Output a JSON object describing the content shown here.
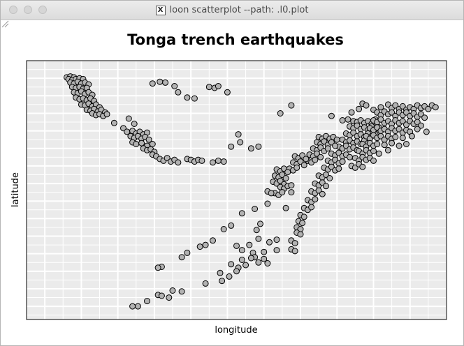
{
  "window": {
    "title": "loon scatterplot --path: .l0.plot",
    "title_icon": "X"
  },
  "chart_data": {
    "type": "scatter",
    "title": "Tonga trench earthquakes",
    "xlabel": "longitude",
    "ylabel": "latitude",
    "xlim": [
      165.0,
      188.0
    ],
    "ylim": [
      -39.5,
      -10.0
    ],
    "grid": true,
    "axis_ticks_shown": false,
    "background": "#ebebeb",
    "point_fill": "#b3b3b3",
    "point_stroke": "#000000",
    "points": [
      [
        167.2,
        -11.9
      ],
      [
        167.4,
        -11.8
      ],
      [
        167.6,
        -11.9
      ],
      [
        167.3,
        -12.1
      ],
      [
        167.5,
        -12.2
      ],
      [
        167.7,
        -12.1
      ],
      [
        167.9,
        -12.0
      ],
      [
        168.1,
        -12.1
      ],
      [
        167.4,
        -12.5
      ],
      [
        167.6,
        -12.6
      ],
      [
        167.8,
        -12.4
      ],
      [
        168.0,
        -12.6
      ],
      [
        168.2,
        -12.5
      ],
      [
        168.4,
        -12.7
      ],
      [
        167.5,
        -13.0
      ],
      [
        167.7,
        -13.1
      ],
      [
        167.9,
        -13.0
      ],
      [
        168.1,
        -13.2
      ],
      [
        168.3,
        -13.1
      ],
      [
        167.6,
        -13.6
      ],
      [
        167.8,
        -13.7
      ],
      [
        168.0,
        -13.5
      ],
      [
        168.2,
        -13.8
      ],
      [
        168.4,
        -13.6
      ],
      [
        168.6,
        -13.9
      ],
      [
        167.7,
        -14.2
      ],
      [
        167.9,
        -14.4
      ],
      [
        168.1,
        -14.3
      ],
      [
        168.3,
        -14.5
      ],
      [
        168.5,
        -14.3
      ],
      [
        168.7,
        -14.6
      ],
      [
        168.0,
        -15.0
      ],
      [
        168.2,
        -15.1
      ],
      [
        168.4,
        -14.9
      ],
      [
        168.6,
        -15.2
      ],
      [
        168.8,
        -15.0
      ],
      [
        169.0,
        -15.3
      ],
      [
        168.3,
        -15.6
      ],
      [
        168.5,
        -15.7
      ],
      [
        168.7,
        -15.5
      ],
      [
        168.9,
        -15.8
      ],
      [
        169.1,
        -15.6
      ],
      [
        169.3,
        -15.9
      ],
      [
        168.6,
        -16.0
      ],
      [
        168.8,
        -16.2
      ],
      [
        169.0,
        -16.1
      ],
      [
        169.2,
        -16.3
      ],
      [
        169.4,
        -16.1
      ],
      [
        169.8,
        -17.1
      ],
      [
        170.3,
        -17.7
      ],
      [
        170.6,
        -16.6
      ],
      [
        170.9,
        -17.2
      ],
      [
        170.5,
        -18.1
      ],
      [
        170.8,
        -18.0
      ],
      [
        171.0,
        -18.3
      ],
      [
        171.2,
        -18.1
      ],
      [
        171.4,
        -18.4
      ],
      [
        171.6,
        -18.2
      ],
      [
        170.7,
        -18.6
      ],
      [
        170.9,
        -18.8
      ],
      [
        171.1,
        -18.6
      ],
      [
        171.3,
        -18.9
      ],
      [
        171.5,
        -18.7
      ],
      [
        171.7,
        -19.0
      ],
      [
        170.8,
        -19.3
      ],
      [
        171.0,
        -19.5
      ],
      [
        171.3,
        -19.4
      ],
      [
        171.6,
        -19.7
      ],
      [
        171.9,
        -19.5
      ],
      [
        171.4,
        -20.0
      ],
      [
        171.6,
        -20.2
      ],
      [
        171.8,
        -20.1
      ],
      [
        172.0,
        -20.4
      ],
      [
        171.9,
        -20.7
      ],
      [
        172.1,
        -20.9
      ],
      [
        172.3,
        -21.2
      ],
      [
        172.5,
        -21.4
      ],
      [
        172.7,
        -21.1
      ],
      [
        172.9,
        -21.5
      ],
      [
        173.1,
        -21.3
      ],
      [
        173.3,
        -21.6
      ],
      [
        173.8,
        -21.2
      ],
      [
        174.0,
        -21.3
      ],
      [
        174.2,
        -21.5
      ],
      [
        174.4,
        -21.3
      ],
      [
        174.6,
        -21.4
      ],
      [
        175.2,
        -21.6
      ],
      [
        175.5,
        -21.4
      ],
      [
        175.8,
        -21.5
      ],
      [
        171.9,
        -12.6
      ],
      [
        172.3,
        -12.4
      ],
      [
        172.6,
        -12.5
      ],
      [
        173.1,
        -12.9
      ],
      [
        173.3,
        -13.6
      ],
      [
        173.8,
        -14.2
      ],
      [
        174.2,
        -14.3
      ],
      [
        175.0,
        -13.0
      ],
      [
        175.3,
        -13.1
      ],
      [
        175.5,
        -12.9
      ],
      [
        176.0,
        -13.6
      ],
      [
        176.2,
        -19.8
      ],
      [
        176.6,
        -18.4
      ],
      [
        176.7,
        -19.3
      ],
      [
        177.3,
        -20.0
      ],
      [
        177.7,
        -19.8
      ],
      [
        178.9,
        -16.0
      ],
      [
        179.5,
        -15.1
      ],
      [
        181.7,
        -16.3
      ],
      [
        182.3,
        -16.8
      ],
      [
        182.8,
        -15.9
      ],
      [
        182.6,
        -16.7
      ],
      [
        182.9,
        -16.9
      ],
      [
        183.1,
        -17.0
      ],
      [
        183.3,
        -16.8
      ],
      [
        183.5,
        -17.1
      ],
      [
        183.7,
        -16.9
      ],
      [
        183.9,
        -17.2
      ],
      [
        184.1,
        -16.7
      ],
      [
        182.7,
        -17.5
      ],
      [
        182.9,
        -17.7
      ],
      [
        183.1,
        -17.4
      ],
      [
        183.3,
        -17.8
      ],
      [
        183.5,
        -17.6
      ],
      [
        183.7,
        -17.9
      ],
      [
        183.9,
        -17.5
      ],
      [
        184.1,
        -17.8
      ],
      [
        184.3,
        -17.6
      ],
      [
        182.5,
        -18.3
      ],
      [
        182.7,
        -18.5
      ],
      [
        182.9,
        -18.2
      ],
      [
        183.1,
        -18.6
      ],
      [
        183.3,
        -18.4
      ],
      [
        183.5,
        -18.7
      ],
      [
        183.7,
        -18.3
      ],
      [
        183.9,
        -18.6
      ],
      [
        184.1,
        -18.4
      ],
      [
        182.3,
        -19.0
      ],
      [
        182.5,
        -19.3
      ],
      [
        182.7,
        -19.1
      ],
      [
        182.9,
        -19.4
      ],
      [
        183.1,
        -19.2
      ],
      [
        183.3,
        -19.5
      ],
      [
        183.5,
        -19.1
      ],
      [
        183.7,
        -19.4
      ],
      [
        182.1,
        -19.8
      ],
      [
        182.3,
        -20.0
      ],
      [
        182.5,
        -19.7
      ],
      [
        182.7,
        -20.1
      ],
      [
        182.9,
        -19.9
      ],
      [
        183.1,
        -20.2
      ],
      [
        181.7,
        -20.6
      ],
      [
        181.9,
        -20.8
      ],
      [
        182.1,
        -20.5
      ],
      [
        182.3,
        -20.9
      ],
      [
        182.5,
        -20.7
      ],
      [
        182.7,
        -21.0
      ],
      [
        181.5,
        -21.4
      ],
      [
        181.7,
        -21.6
      ],
      [
        181.9,
        -21.3
      ],
      [
        182.1,
        -21.7
      ],
      [
        182.3,
        -21.5
      ],
      [
        181.3,
        -22.2
      ],
      [
        181.5,
        -22.4
      ],
      [
        181.7,
        -22.1
      ],
      [
        181.9,
        -22.5
      ],
      [
        182.1,
        -22.3
      ],
      [
        181.0,
        -23.1
      ],
      [
        181.2,
        -23.3
      ],
      [
        181.4,
        -23.0
      ],
      [
        181.6,
        -23.4
      ],
      [
        180.8,
        -24.0
      ],
      [
        181.0,
        -24.2
      ],
      [
        181.2,
        -23.9
      ],
      [
        181.4,
        -24.3
      ],
      [
        180.6,
        -24.9
      ],
      [
        180.8,
        -25.1
      ],
      [
        181.0,
        -24.8
      ],
      [
        181.2,
        -25.2
      ],
      [
        180.4,
        -25.9
      ],
      [
        180.6,
        -26.1
      ],
      [
        180.8,
        -25.8
      ],
      [
        180.2,
        -26.8
      ],
      [
        180.4,
        -27.0
      ],
      [
        180.6,
        -26.7
      ],
      [
        180.0,
        -27.6
      ],
      [
        180.2,
        -27.8
      ],
      [
        179.9,
        -28.3
      ],
      [
        180.1,
        -28.5
      ],
      [
        179.8,
        -29.0
      ],
      [
        180.0,
        -29.2
      ],
      [
        179.8,
        -29.6
      ],
      [
        180.0,
        -29.8
      ],
      [
        179.5,
        -30.5
      ],
      [
        179.7,
        -30.8
      ],
      [
        179.5,
        -31.5
      ],
      [
        179.7,
        -31.7
      ],
      [
        183.4,
        -14.9
      ],
      [
        183.2,
        -15.5
      ],
      [
        183.6,
        -15.1
      ],
      [
        184.0,
        -15.6
      ],
      [
        184.4,
        -15.3
      ],
      [
        184.8,
        -15.0
      ],
      [
        185.0,
        -15.4
      ],
      [
        185.2,
        -15.1
      ],
      [
        185.4,
        -15.5
      ],
      [
        185.6,
        -15.2
      ],
      [
        185.8,
        -15.6
      ],
      [
        186.0,
        -15.3
      ],
      [
        186.2,
        -15.5
      ],
      [
        186.4,
        -15.1
      ],
      [
        186.6,
        -15.4
      ],
      [
        186.8,
        -15.2
      ],
      [
        187.0,
        -15.5
      ],
      [
        187.2,
        -15.1
      ],
      [
        187.4,
        -15.3
      ],
      [
        184.2,
        -15.9
      ],
      [
        184.4,
        -16.2
      ],
      [
        184.6,
        -15.8
      ],
      [
        184.8,
        -16.1
      ],
      [
        185.0,
        -15.9
      ],
      [
        185.2,
        -16.3
      ],
      [
        185.4,
        -15.9
      ],
      [
        185.6,
        -16.2
      ],
      [
        185.8,
        -15.9
      ],
      [
        186.0,
        -16.3
      ],
      [
        186.2,
        -16.0
      ],
      [
        186.4,
        -16.4
      ],
      [
        186.6,
        -16.1
      ],
      [
        186.8,
        -16.5
      ],
      [
        184.0,
        -16.8
      ],
      [
        184.2,
        -17.0
      ],
      [
        184.4,
        -16.7
      ],
      [
        184.6,
        -17.1
      ],
      [
        184.8,
        -16.9
      ],
      [
        185.0,
        -17.2
      ],
      [
        185.2,
        -16.8
      ],
      [
        185.4,
        -17.1
      ],
      [
        185.6,
        -16.9
      ],
      [
        185.8,
        -17.3
      ],
      [
        186.0,
        -16.9
      ],
      [
        186.2,
        -17.2
      ],
      [
        186.4,
        -17.0
      ],
      [
        186.6,
        -17.4
      ],
      [
        183.8,
        -17.7
      ],
      [
        184.0,
        -17.9
      ],
      [
        184.2,
        -17.6
      ],
      [
        184.4,
        -18.0
      ],
      [
        184.6,
        -17.8
      ],
      [
        184.8,
        -18.1
      ],
      [
        185.0,
        -17.7
      ],
      [
        185.2,
        -18.0
      ],
      [
        185.4,
        -17.8
      ],
      [
        185.6,
        -18.2
      ],
      [
        185.8,
        -17.9
      ],
      [
        186.0,
        -18.1
      ],
      [
        186.4,
        -17.8
      ],
      [
        186.9,
        -18.1
      ],
      [
        183.6,
        -18.6
      ],
      [
        183.8,
        -18.9
      ],
      [
        184.0,
        -18.5
      ],
      [
        184.2,
        -18.8
      ],
      [
        184.4,
        -18.6
      ],
      [
        184.6,
        -19.0
      ],
      [
        184.8,
        -18.6
      ],
      [
        185.0,
        -18.9
      ],
      [
        185.2,
        -18.7
      ],
      [
        185.6,
        -18.8
      ],
      [
        186.1,
        -18.6
      ],
      [
        183.4,
        -19.5
      ],
      [
        183.6,
        -19.8
      ],
      [
        183.8,
        -19.4
      ],
      [
        184.0,
        -19.7
      ],
      [
        184.2,
        -19.5
      ],
      [
        184.6,
        -19.6
      ],
      [
        185.0,
        -19.4
      ],
      [
        185.4,
        -19.7
      ],
      [
        185.8,
        -19.5
      ],
      [
        183.2,
        -20.3
      ],
      [
        183.4,
        -20.6
      ],
      [
        183.6,
        -20.2
      ],
      [
        183.8,
        -20.5
      ],
      [
        184.0,
        -20.3
      ],
      [
        184.3,
        -20.6
      ],
      [
        184.8,
        -20.2
      ],
      [
        183.0,
        -21.1
      ],
      [
        183.2,
        -21.4
      ],
      [
        183.4,
        -21.0
      ],
      [
        183.6,
        -21.3
      ],
      [
        183.8,
        -21.1
      ],
      [
        184.0,
        -21.4
      ],
      [
        182.8,
        -22.0
      ],
      [
        183.0,
        -22.2
      ],
      [
        183.2,
        -21.8
      ],
      [
        183.4,
        -22.1
      ],
      [
        181.0,
        -18.7
      ],
      [
        181.2,
        -18.9
      ],
      [
        181.4,
        -18.6
      ],
      [
        181.6,
        -18.9
      ],
      [
        181.8,
        -18.7
      ],
      [
        182.0,
        -19.0
      ],
      [
        180.9,
        -19.3
      ],
      [
        181.1,
        -19.5
      ],
      [
        181.3,
        -19.2
      ],
      [
        181.5,
        -19.6
      ],
      [
        181.7,
        -19.3
      ],
      [
        181.9,
        -19.7
      ],
      [
        180.7,
        -20.0
      ],
      [
        180.9,
        -20.2
      ],
      [
        181.1,
        -19.9
      ],
      [
        181.3,
        -20.3
      ],
      [
        181.5,
        -20.0
      ],
      [
        180.5,
        -20.7
      ],
      [
        180.7,
        -20.9
      ],
      [
        180.9,
        -20.6
      ],
      [
        181.1,
        -21.0
      ],
      [
        180.4,
        -21.4
      ],
      [
        180.6,
        -21.6
      ],
      [
        180.8,
        -21.3
      ],
      [
        179.7,
        -20.9
      ],
      [
        179.9,
        -21.1
      ],
      [
        180.1,
        -20.8
      ],
      [
        180.3,
        -21.2
      ],
      [
        179.6,
        -21.6
      ],
      [
        179.8,
        -21.8
      ],
      [
        180.0,
        -21.5
      ],
      [
        179.4,
        -22.3
      ],
      [
        179.6,
        -22.5
      ],
      [
        179.8,
        -22.2
      ],
      [
        178.7,
        -22.4
      ],
      [
        178.9,
        -22.6
      ],
      [
        179.1,
        -22.3
      ],
      [
        179.3,
        -22.7
      ],
      [
        178.6,
        -23.1
      ],
      [
        178.8,
        -23.3
      ],
      [
        179.0,
        -23.0
      ],
      [
        179.2,
        -23.4
      ],
      [
        178.5,
        -23.8
      ],
      [
        178.7,
        -24.0
      ],
      [
        178.9,
        -23.7
      ],
      [
        179.1,
        -24.1
      ],
      [
        178.9,
        -24.4
      ],
      [
        179.1,
        -24.6
      ],
      [
        179.3,
        -24.3
      ],
      [
        178.6,
        -25.1
      ],
      [
        178.8,
        -25.3
      ],
      [
        179.0,
        -25.0
      ],
      [
        178.2,
        -24.9
      ],
      [
        178.4,
        -25.1
      ],
      [
        180.2,
        -21.9
      ],
      [
        179.5,
        -25.0
      ],
      [
        179.5,
        -24.2
      ],
      [
        179.2,
        -26.8
      ],
      [
        178.2,
        -26.3
      ],
      [
        177.5,
        -26.9
      ],
      [
        176.8,
        -27.4
      ],
      [
        175.8,
        -29.2
      ],
      [
        175.2,
        -30.5
      ],
      [
        174.8,
        -31.0
      ],
      [
        174.5,
        -31.2
      ],
      [
        173.8,
        -31.9
      ],
      [
        173.5,
        -32.4
      ],
      [
        176.2,
        -28.8
      ],
      [
        172.4,
        -33.5
      ],
      [
        172.2,
        -33.6
      ],
      [
        177.8,
        -28.6
      ],
      [
        177.6,
        -29.3
      ],
      [
        177.7,
        -30.3
      ],
      [
        177.2,
        -31.0
      ],
      [
        176.5,
        -31.1
      ],
      [
        176.8,
        -31.6
      ],
      [
        178.0,
        -31.8
      ],
      [
        177.4,
        -31.9
      ],
      [
        178.3,
        -30.7
      ],
      [
        178.7,
        -30.4
      ],
      [
        178.7,
        -31.6
      ],
      [
        177.5,
        -32.4
      ],
      [
        176.8,
        -32.7
      ],
      [
        176.2,
        -33.2
      ],
      [
        177.0,
        -33.3
      ],
      [
        176.6,
        -33.6
      ],
      [
        175.6,
        -34.2
      ],
      [
        174.8,
        -35.4
      ],
      [
        173.5,
        -36.3
      ],
      [
        173.0,
        -36.2
      ],
      [
        172.2,
        -36.7
      ],
      [
        172.4,
        -36.8
      ],
      [
        172.8,
        -37.0
      ],
      [
        171.6,
        -37.4
      ],
      [
        171.1,
        -38.0
      ],
      [
        170.8,
        -38.0
      ],
      [
        177.3,
        -32.5
      ],
      [
        177.7,
        -33.0
      ],
      [
        178.0,
        -32.6
      ],
      [
        178.2,
        -33.1
      ],
      [
        176.5,
        -34.0
      ],
      [
        175.7,
        -35.1
      ],
      [
        176.1,
        -34.6
      ]
    ]
  }
}
